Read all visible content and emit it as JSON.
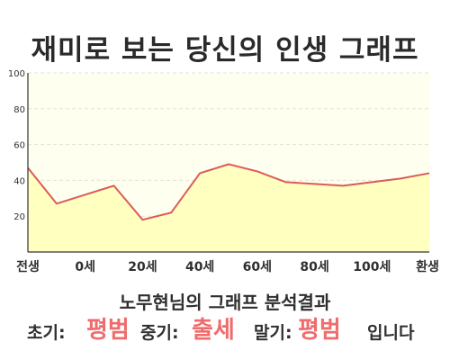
{
  "title": "재미로 보는 당신의 인생 그래프",
  "subtitle": "노무현님의 그래프 분석결과",
  "summary": {
    "early_label": "초기:",
    "early_value": "평범",
    "mid_label": "중기:",
    "mid_value": "출세",
    "late_label": "말기:",
    "late_value": "평범",
    "ending": "입니다"
  },
  "chart_data": {
    "type": "area",
    "x": [
      0,
      0.5,
      1,
      1.5,
      2,
      2.5,
      3,
      3.5,
      4,
      4.5,
      5,
      5.5,
      6,
      6.5,
      7
    ],
    "x_tick_labels": [
      "전생",
      "0세",
      "20세",
      "40세",
      "60세",
      "80세",
      "100세",
      "환생"
    ],
    "x_tick_positions": [
      0,
      1,
      2,
      3,
      4,
      5,
      6,
      7
    ],
    "values": [
      47,
      27,
      32,
      37,
      18,
      22,
      44,
      49,
      45,
      39,
      38,
      37,
      39,
      41,
      44
    ],
    "ylim": [
      0,
      100
    ],
    "y_ticks": [
      20,
      40,
      60,
      80,
      100
    ],
    "grid": true,
    "line_color": "#dd5a5a",
    "fill_color": "#ffffc0",
    "background_color": "#fffff0"
  }
}
